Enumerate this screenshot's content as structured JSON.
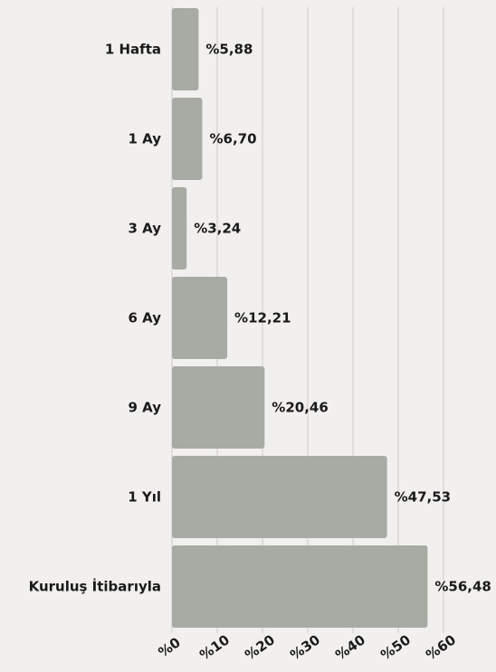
{
  "chart_data": {
    "type": "bar",
    "orientation": "horizontal",
    "categories": [
      "1 Hafta",
      "1 Ay",
      "3 Ay",
      "6 Ay",
      "9 Ay",
      "1 Yıl",
      "Kuruluş İtibarıyla"
    ],
    "values": [
      5.88,
      6.7,
      3.24,
      12.21,
      20.46,
      47.53,
      56.48
    ],
    "value_labels": [
      "%5,88",
      "%6,70",
      "%3,24",
      "%12,21",
      "%20,46",
      "%47,53",
      "%56,48"
    ],
    "x_ticks": [
      "%0",
      "%10",
      "%20",
      "%30",
      "%40",
      "%50",
      "%60"
    ],
    "xlim": [
      0,
      60
    ],
    "grid": true,
    "bar_color": "#a7aba3",
    "background": "#f1f0ee"
  }
}
